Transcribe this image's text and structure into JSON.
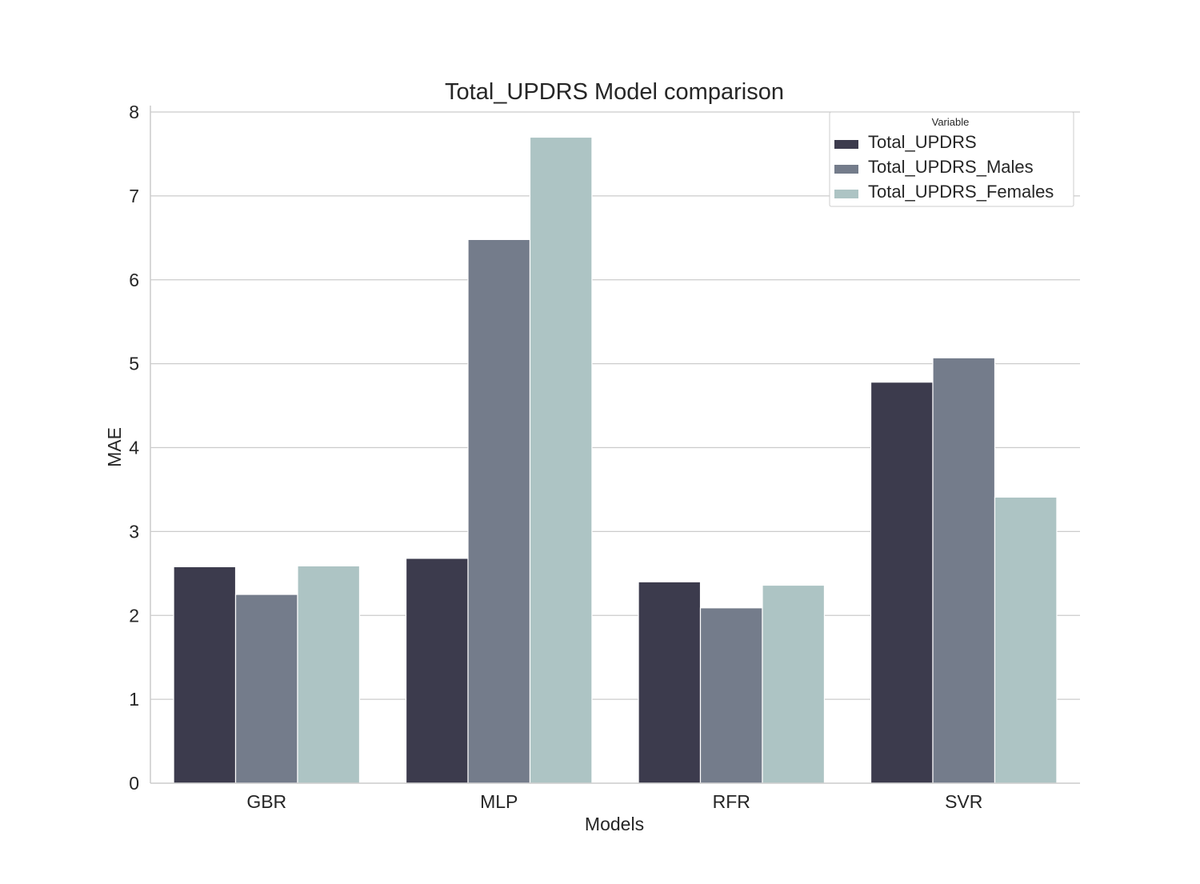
{
  "chart_data": {
    "type": "bar",
    "title": "Total_UPDRS Model comparison",
    "xlabel": "Models",
    "ylabel": "MAE",
    "categories": [
      "GBR",
      "MLP",
      "RFR",
      "SVR"
    ],
    "ylim": [
      0,
      8
    ],
    "yticks": [
      "0",
      "1",
      "2",
      "3",
      "4",
      "5",
      "6",
      "7",
      "8"
    ],
    "grid": "horizontal",
    "legend": {
      "title": "Variable",
      "placement": "top-right"
    },
    "series": [
      {
        "name": "Total_UPDRS",
        "color": "#3c3b4d",
        "values": [
          2.58,
          2.68,
          2.4,
          4.78
        ]
      },
      {
        "name": "Total_UPDRS_Males",
        "color": "#747c8b",
        "values": [
          2.25,
          6.48,
          2.09,
          5.07
        ]
      },
      {
        "name": "Total_UPDRS_Females",
        "color": "#adc4c4",
        "values": [
          2.59,
          7.7,
          2.36,
          3.41
        ]
      }
    ]
  }
}
